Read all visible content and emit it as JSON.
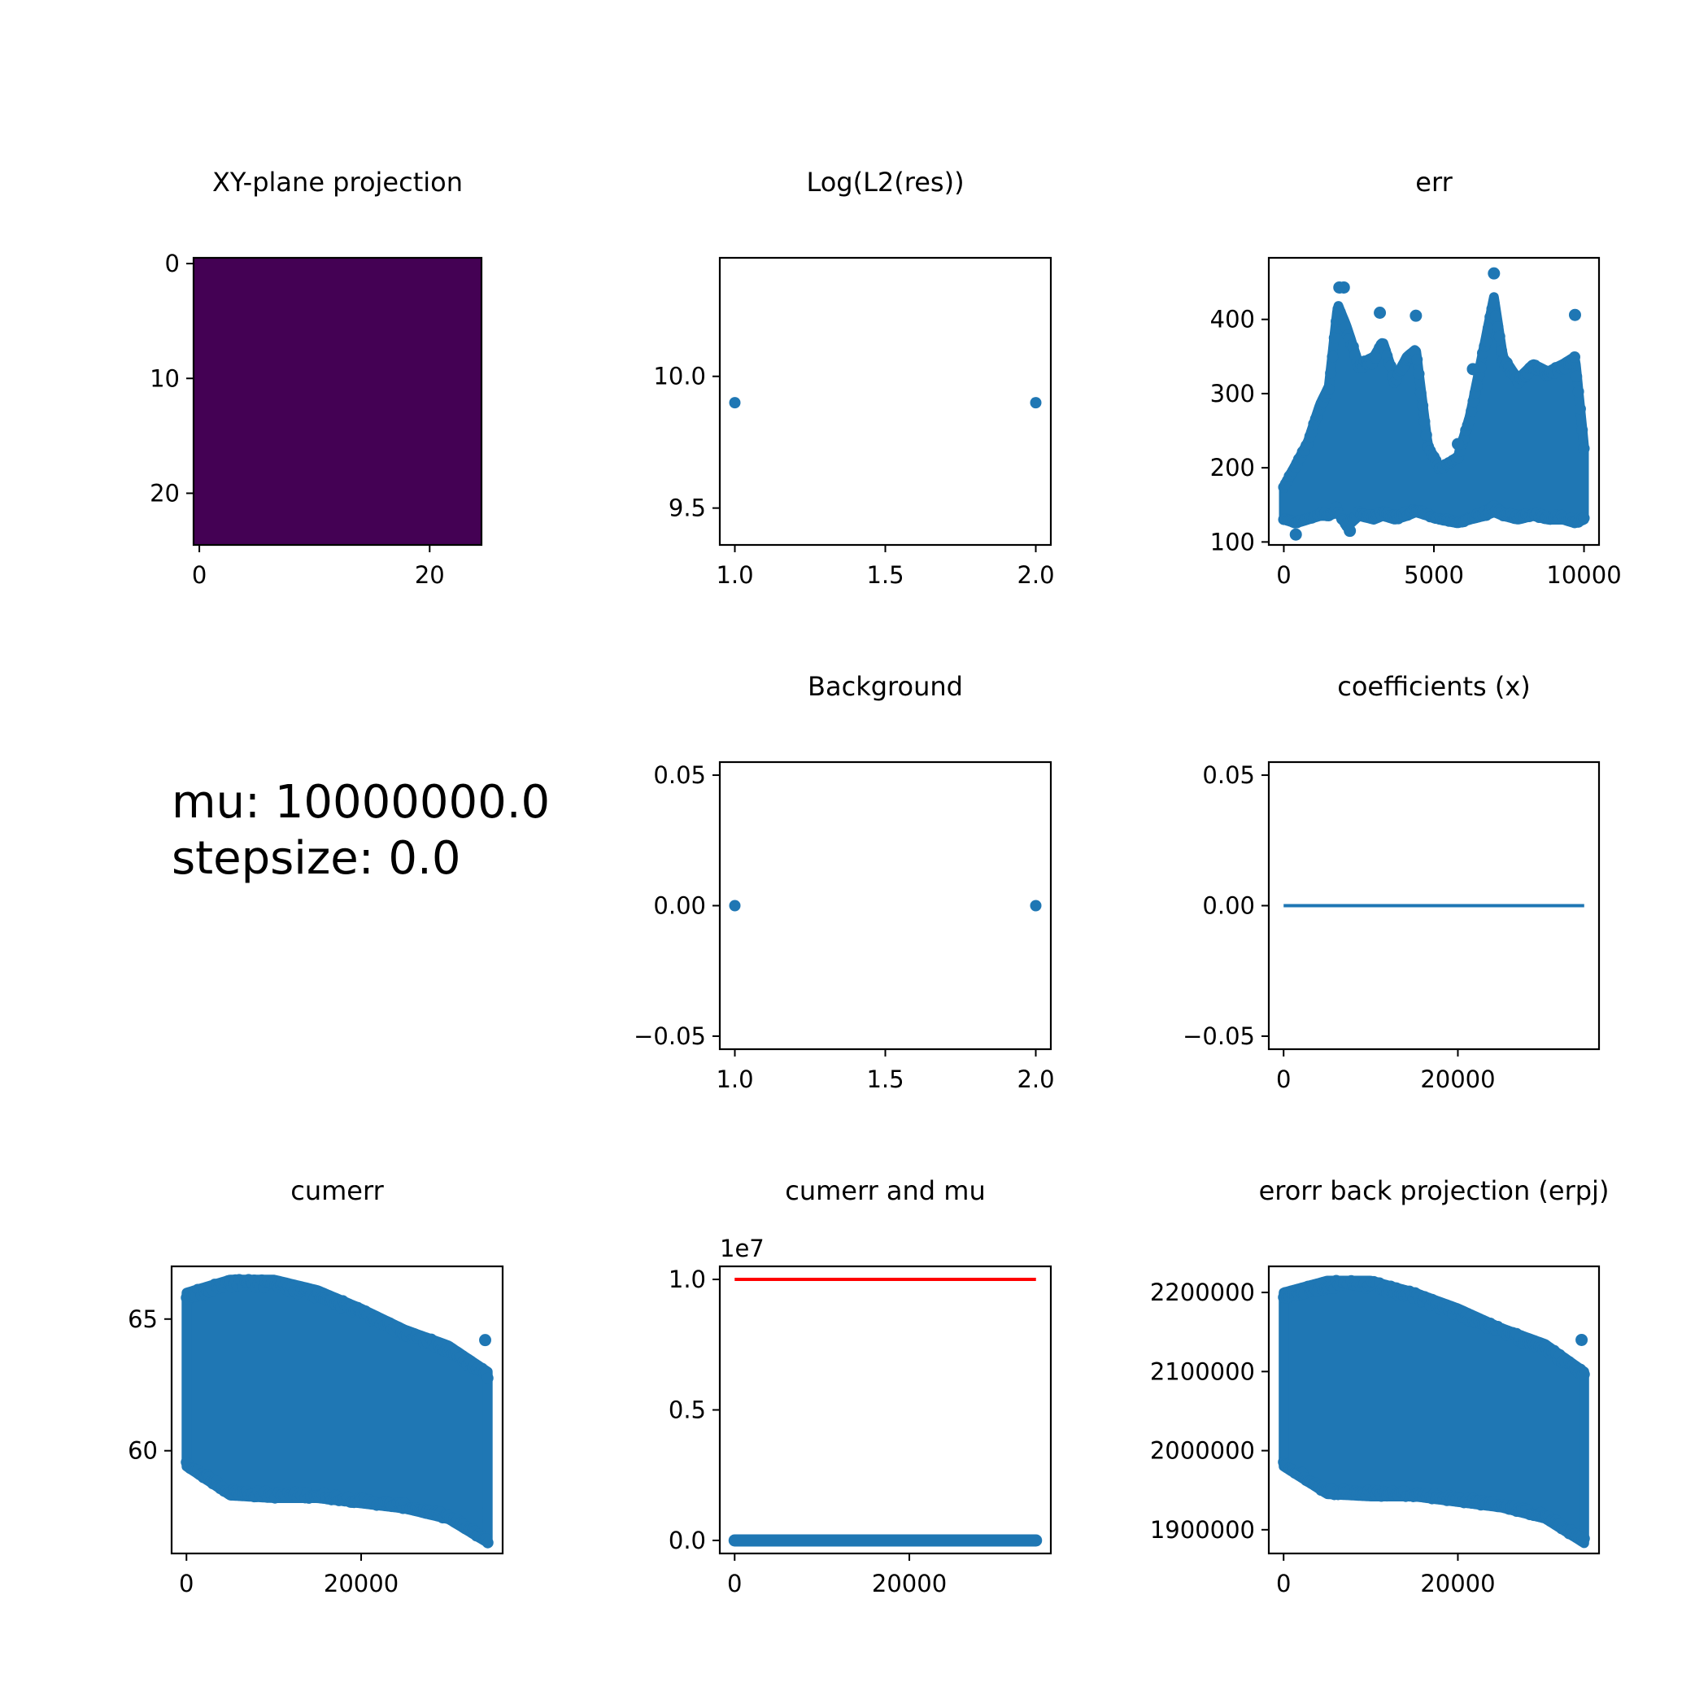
{
  "figure_text": {
    "mu_line": "mu: 10000000.0",
    "stepsize_line": "stepsize: 0.0"
  },
  "colors": {
    "series": "#1f77b4",
    "mu_line": "#ff0000",
    "image_fill": "#440154"
  },
  "chart_data": [
    {
      "id": "xy",
      "type": "heatmap",
      "title": "XY-plane projection",
      "image_value": 0,
      "x_ticks": [
        "0",
        "20"
      ],
      "y_ticks": [
        "0",
        "10",
        "20"
      ],
      "xlim": [
        -0.5,
        24.5
      ],
      "ylim": [
        24.5,
        -0.5
      ]
    },
    {
      "id": "log",
      "type": "scatter",
      "title": "Log(L2(res))",
      "x": [
        1.0,
        2.0
      ],
      "y": [
        9.9,
        9.9
      ],
      "x_ticks": [
        "1.0",
        "1.5",
        "2.0"
      ],
      "y_ticks": [
        "9.5",
        "10.0"
      ],
      "xlim": [
        0.95,
        2.05
      ],
      "ylim": [
        9.36,
        10.45
      ]
    },
    {
      "id": "err",
      "type": "scatter",
      "title": "err",
      "n_points": 10000,
      "envelope": [
        {
          "x": 0,
          "low": 130,
          "high": 175
        },
        {
          "x": 400,
          "low": 125,
          "high": 205
        },
        {
          "x": 800,
          "low": 130,
          "high": 235
        },
        {
          "x": 1200,
          "low": 135,
          "high": 285
        },
        {
          "x": 1500,
          "low": 135,
          "high": 310
        },
        {
          "x": 1800,
          "low": 140,
          "high": 420
        },
        {
          "x": 2100,
          "low": 120,
          "high": 390
        },
        {
          "x": 2500,
          "low": 135,
          "high": 340
        },
        {
          "x": 3000,
          "low": 130,
          "high": 350
        },
        {
          "x": 3300,
          "low": 135,
          "high": 370
        },
        {
          "x": 3700,
          "low": 130,
          "high": 320
        },
        {
          "x": 4100,
          "low": 135,
          "high": 350
        },
        {
          "x": 4400,
          "low": 140,
          "high": 360
        },
        {
          "x": 4800,
          "low": 135,
          "high": 230
        },
        {
          "x": 5200,
          "low": 130,
          "high": 200
        },
        {
          "x": 5800,
          "low": 125,
          "high": 215
        },
        {
          "x": 6200,
          "low": 130,
          "high": 270
        },
        {
          "x": 6700,
          "low": 135,
          "high": 370
        },
        {
          "x": 7000,
          "low": 140,
          "high": 430
        },
        {
          "x": 7300,
          "low": 135,
          "high": 350
        },
        {
          "x": 7800,
          "low": 130,
          "high": 320
        },
        {
          "x": 8300,
          "low": 135,
          "high": 340
        },
        {
          "x": 8800,
          "low": 130,
          "high": 330
        },
        {
          "x": 9300,
          "low": 130,
          "high": 340
        },
        {
          "x": 9700,
          "low": 125,
          "high": 350
        },
        {
          "x": 10000,
          "low": 130,
          "high": 230
        }
      ],
      "outliers": [
        [
          1850,
          443
        ],
        [
          2000,
          443
        ],
        [
          3200,
          409
        ],
        [
          4400,
          405
        ],
        [
          7000,
          462
        ],
        [
          9700,
          406
        ],
        [
          400,
          110
        ],
        [
          2200,
          115
        ],
        [
          5800,
          232
        ],
        [
          6300,
          333
        ]
      ],
      "x_ticks": [
        "0",
        "5000",
        "10000"
      ],
      "y_ticks": [
        "100",
        "200",
        "300",
        "400"
      ],
      "xlim": [
        -500,
        10500
      ],
      "ylim": [
        96,
        483
      ]
    },
    {
      "id": "bg",
      "type": "scatter",
      "title": "Background",
      "x": [
        1.0,
        2.0
      ],
      "y": [
        0.0,
        0.0
      ],
      "x_ticks": [
        "1.0",
        "1.5",
        "2.0"
      ],
      "y_ticks": [
        "−0.05",
        "0.00",
        "0.05"
      ],
      "xlim": [
        0.95,
        2.05
      ],
      "ylim": [
        -0.055,
        0.055
      ]
    },
    {
      "id": "coef",
      "type": "line",
      "title": "coefficients (x)",
      "x": [
        0,
        34500
      ],
      "y": [
        0.0,
        0.0
      ],
      "x_ticks": [
        "0",
        "20000"
      ],
      "y_ticks": [
        "−0.05",
        "0.00",
        "0.05"
      ],
      "xlim": [
        -1700,
        36200
      ],
      "ylim": [
        -0.055,
        0.055
      ]
    },
    {
      "id": "cumerr",
      "type": "scatter",
      "title": "cumerr",
      "n_points": 34500,
      "envelope": [
        {
          "x": 0,
          "low": 59.4,
          "high": 66.0
        },
        {
          "x": 5000,
          "low": 58.3,
          "high": 66.5
        },
        {
          "x": 10000,
          "low": 58.2,
          "high": 66.5
        },
        {
          "x": 15000,
          "low": 58.2,
          "high": 66.1
        },
        {
          "x": 20000,
          "low": 58.0,
          "high": 65.4
        },
        {
          "x": 25000,
          "low": 57.8,
          "high": 64.6
        },
        {
          "x": 30000,
          "low": 57.4,
          "high": 64.0
        },
        {
          "x": 34500,
          "low": 56.5,
          "high": 63.0
        }
      ],
      "outliers": [
        [
          34200,
          64.2
        ]
      ],
      "x_ticks": [
        "0",
        "20000"
      ],
      "y_ticks": [
        "60",
        "65"
      ],
      "xlim": [
        -1700,
        36200
      ],
      "ylim": [
        56.1,
        67.0
      ]
    },
    {
      "id": "mu",
      "type": "line",
      "title": "cumerr and mu",
      "offset_label": "1e7",
      "series": [
        {
          "role": "mu",
          "x": [
            0,
            34500
          ],
          "y": [
            1.0,
            1.0
          ]
        },
        {
          "role": "cumerr",
          "x": [
            0,
            34500
          ],
          "y": [
            0.0,
            0.0
          ]
        }
      ],
      "x_ticks": [
        "0",
        "20000"
      ],
      "y_ticks": [
        "0.0",
        "0.5",
        "1.0"
      ],
      "xlim": [
        -1700,
        36200
      ],
      "ylim": [
        -0.05,
        1.05
      ]
    },
    {
      "id": "erpj",
      "type": "scatter",
      "title": "erorr back projection (erpj)",
      "n_points": 34500,
      "envelope": [
        {
          "x": 0,
          "low": 1980000,
          "high": 2200000
        },
        {
          "x": 5000,
          "low": 1945000,
          "high": 2215000
        },
        {
          "x": 10000,
          "low": 1942000,
          "high": 2215000
        },
        {
          "x": 15000,
          "low": 1942000,
          "high": 2200000
        },
        {
          "x": 20000,
          "low": 1935000,
          "high": 2180000
        },
        {
          "x": 25000,
          "low": 1928000,
          "high": 2155000
        },
        {
          "x": 30000,
          "low": 1914000,
          "high": 2135000
        },
        {
          "x": 34500,
          "low": 1883000,
          "high": 2100000
        }
      ],
      "outliers": [
        [
          34200,
          2140000
        ]
      ],
      "x_ticks": [
        "0",
        "20000"
      ],
      "y_ticks": [
        "1900000",
        "2000000",
        "2100000",
        "2200000"
      ],
      "xlim": [
        -1700,
        36200
      ],
      "ylim": [
        1870000,
        2233000
      ]
    }
  ]
}
